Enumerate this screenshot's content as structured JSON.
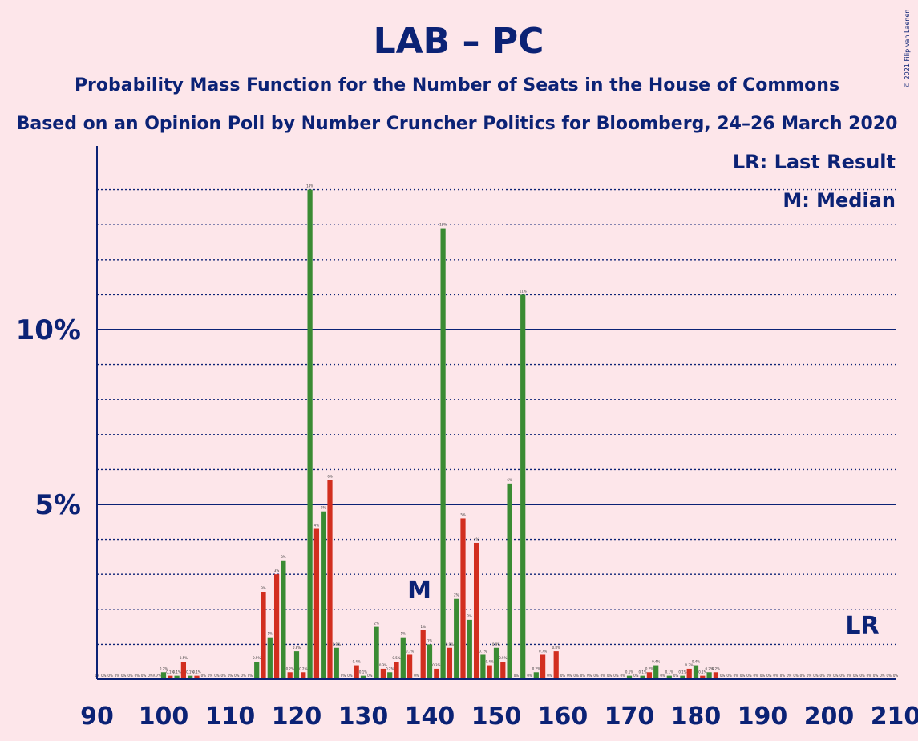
{
  "title": "LAB – PC",
  "subtitle1": "Probability Mass Function for the Number of Seats in the House of Commons",
  "subtitle2": "Based on an Opinion Poll by Number Cruncher Politics for Bloomberg, 24–26 March 2020",
  "copyright": "© 2021 Filip van Laenen",
  "legend": {
    "lr": "LR: Last Result",
    "m": "M: Median"
  },
  "markers": {
    "median_label": "M",
    "median_seat": 140,
    "lr_label": "LR",
    "lr_seat": 205
  },
  "colors": {
    "background": "#FDE6EA",
    "axis": "#0B2275",
    "green": "#3A8B33",
    "red": "#D22E1F"
  },
  "chart_data": {
    "type": "bar",
    "xlim": [
      90,
      210
    ],
    "ylim": [
      0,
      15
    ],
    "x_ticks": [
      90,
      100,
      110,
      120,
      130,
      140,
      150,
      160,
      170,
      180,
      190,
      200,
      210
    ],
    "y_ticks": [
      {
        "value": 5,
        "label": "5%"
      },
      {
        "value": 10,
        "label": "10%"
      }
    ],
    "y_dotted_every": 1,
    "bar_color_rule": "even seats green, odd seats red",
    "x": [
      90,
      91,
      92,
      93,
      94,
      95,
      96,
      97,
      98,
      99,
      100,
      101,
      102,
      103,
      104,
      105,
      106,
      107,
      108,
      109,
      110,
      111,
      112,
      113,
      114,
      115,
      116,
      117,
      118,
      119,
      120,
      121,
      122,
      123,
      124,
      125,
      126,
      127,
      128,
      129,
      130,
      131,
      132,
      133,
      134,
      135,
      136,
      137,
      138,
      139,
      140,
      141,
      142,
      143,
      144,
      145,
      146,
      147,
      148,
      149,
      150,
      151,
      152,
      153,
      154,
      155,
      156,
      157,
      158,
      159,
      160,
      161,
      162,
      163,
      164,
      165,
      166,
      167,
      168,
      169,
      170,
      171,
      172,
      173,
      174,
      175,
      176,
      177,
      178,
      179,
      180,
      181,
      182,
      183,
      184,
      185,
      186,
      187,
      188,
      189,
      190,
      191,
      192,
      193,
      194,
      195,
      196,
      197,
      198,
      199,
      200,
      201,
      202,
      203,
      204,
      205,
      206,
      207,
      208,
      209,
      210
    ],
    "values": [
      0,
      0,
      0,
      0,
      0,
      0,
      0,
      0,
      0,
      0.01,
      0.2,
      0.1,
      0.1,
      0.5,
      0.1,
      0.1,
      0,
      0,
      0,
      0,
      0,
      0,
      0,
      0,
      0.5,
      2.5,
      1.2,
      3,
      3.4,
      0.2,
      0.8,
      0.2,
      14,
      4.3,
      4.8,
      5.7,
      0.9,
      0,
      0,
      0.4,
      0.1,
      0,
      1.5,
      0.3,
      0.2,
      0.5,
      1.2,
      0.7,
      0,
      1.4,
      1,
      0.3,
      12.9,
      0.9,
      2.3,
      4.6,
      1.7,
      3.9,
      0.7,
      0.4,
      0.9,
      0.5,
      5.6,
      0,
      11,
      0,
      0.2,
      0.7,
      0,
      0.8,
      0,
      0,
      0,
      0,
      0,
      0,
      0,
      0,
      0,
      0,
      0.1,
      0,
      0.1,
      0.2,
      0.4,
      0,
      0.1,
      0,
      0.1,
      0.3,
      0.4,
      0.1,
      0.2,
      0.2,
      0,
      0,
      0,
      0,
      0,
      0,
      0,
      0,
      0,
      0,
      0,
      0,
      0,
      0,
      0,
      0,
      0,
      0,
      0,
      0,
      0,
      0,
      0,
      0,
      0,
      0,
      0
    ]
  }
}
